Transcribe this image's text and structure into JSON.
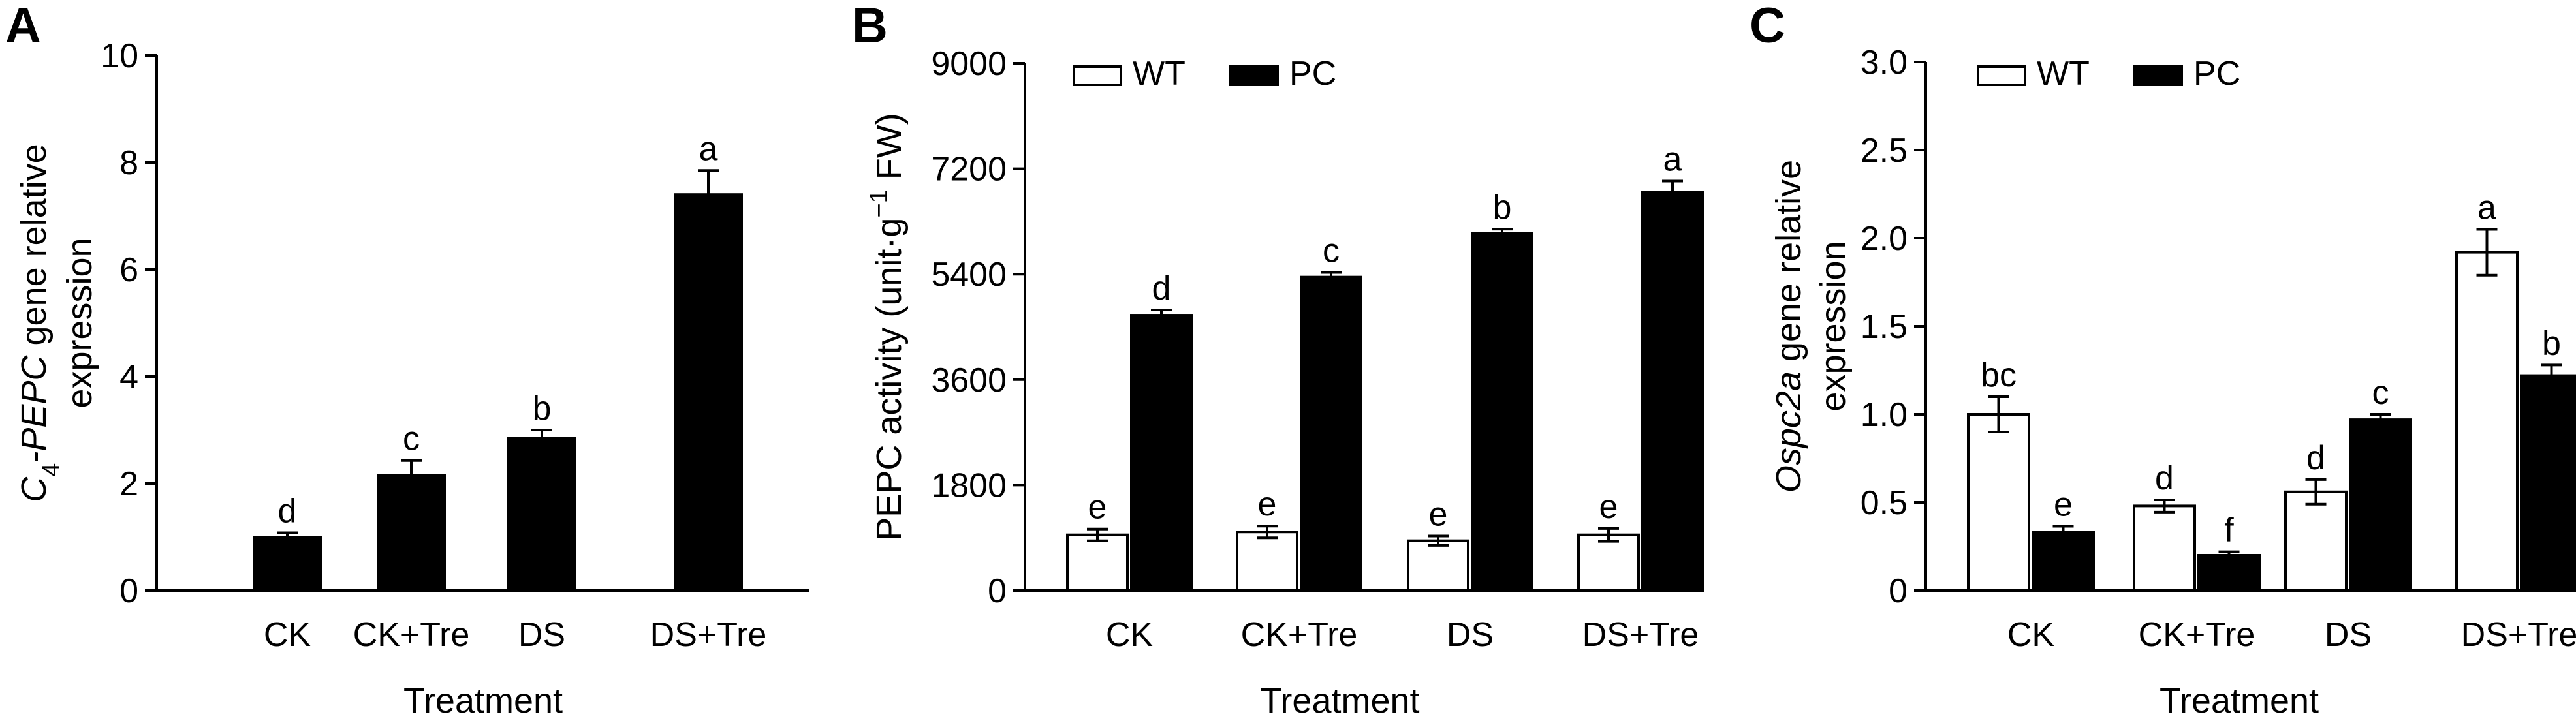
{
  "chart_data": [
    {
      "panel": "A",
      "type": "bar",
      "categories": [
        "CK",
        "CK+Tre",
        "DS",
        "DS+Tre"
      ],
      "xlabel": "Treatment",
      "ylabel": {
        "italic": "C",
        "sub": "4",
        "italic2": "-PEPC",
        "rest": " gene relative",
        "line2": "expression"
      },
      "ylim": [
        0,
        10
      ],
      "yticks": [
        0,
        2,
        4,
        6,
        8,
        10
      ],
      "series": [
        {
          "values": [
            1.0,
            2.15,
            2.85,
            7.4
          ],
          "errors": [
            0.08,
            0.28,
            0.15,
            0.45
          ],
          "letters": [
            "d",
            "c",
            "b",
            "a"
          ],
          "fill": "#000000"
        }
      ]
    },
    {
      "panel": "B",
      "type": "bar",
      "categories": [
        "CK",
        "CK+Tre",
        "DS",
        "DS+Tre"
      ],
      "xlabel": "Treatment",
      "ylabel": {
        "pre": "PEPC activity (unit·g",
        "sup": "−1",
        "post": " FW)"
      },
      "ylim": [
        0,
        9000
      ],
      "yticks": [
        0,
        1800,
        3600,
        5400,
        7200,
        9000
      ],
      "legend": [
        "WT",
        "PC"
      ],
      "series": [
        {
          "name": "WT",
          "values": [
            950,
            1000,
            850,
            950
          ],
          "errors": [
            100,
            100,
            80,
            110
          ],
          "letters": [
            "e",
            "e",
            "e",
            "e"
          ],
          "fill": "#ffffff"
        },
        {
          "name": "PC",
          "values": [
            4700,
            5350,
            6100,
            6800
          ],
          "errors": [
            90,
            80,
            70,
            190
          ],
          "letters": [
            "d",
            "c",
            "b",
            "a"
          ],
          "fill": "#000000"
        }
      ]
    },
    {
      "panel": "C",
      "type": "bar",
      "categories": [
        "CK",
        "CK+Tre",
        "DS",
        "DS+Tre"
      ],
      "xlabel": "Treatment",
      "ylabel": {
        "italic": "Ospc2a",
        "rest": " gene relative",
        "line2": "expression"
      },
      "ylim": [
        0,
        3.0
      ],
      "yticks": [
        "0",
        "0.5",
        "1.0",
        "1.5",
        "2.0",
        "2.5",
        "3.0"
      ],
      "legend": [
        "WT",
        "PC"
      ],
      "series": [
        {
          "name": "WT",
          "values": [
            1.0,
            0.48,
            0.56,
            1.92
          ],
          "errors": [
            0.1,
            0.035,
            0.07,
            0.13
          ],
          "letters": [
            "bc",
            "d",
            "d",
            "a"
          ],
          "fill": "#ffffff"
        },
        {
          "name": "PC",
          "values": [
            0.33,
            0.2,
            0.97,
            1.22
          ],
          "errors": [
            0.035,
            0.02,
            0.03,
            0.06
          ],
          "letters": [
            "e",
            "f",
            "c",
            "b"
          ],
          "fill": "#000000"
        }
      ]
    }
  ]
}
